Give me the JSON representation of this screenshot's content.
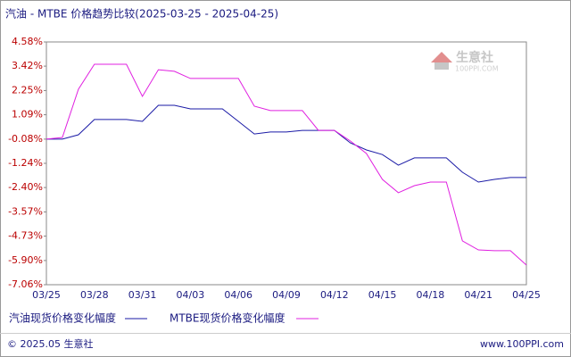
{
  "chart_data": {
    "type": "line",
    "title": "汽油 - MTBE 价格趋势比较(2025-03-25 - 2025-04-25)",
    "categories": [
      "03/25",
      null,
      null,
      "03/28",
      null,
      null,
      "03/31",
      null,
      null,
      "04/03",
      null,
      null,
      "04/06",
      null,
      null,
      "04/09",
      null,
      null,
      "04/12",
      null,
      null,
      "04/15",
      null,
      null,
      "04/18",
      null,
      null,
      "04/21",
      null,
      null,
      "04/25"
    ],
    "series": [
      {
        "name": "汽油现货价格变化幅度",
        "color": "#1a1aa6",
        "values": [
          -0.08,
          -0.08,
          0.13,
          0.86,
          0.86,
          0.86,
          0.77,
          1.54,
          1.54,
          1.37,
          1.37,
          1.37,
          0.77,
          0.17,
          0.26,
          0.26,
          0.34,
          0.34,
          0.34,
          -0.26,
          -0.6,
          -0.82,
          -1.33,
          -0.98,
          -0.98,
          -0.98,
          -1.67,
          -2.14,
          -2.01,
          -1.92,
          -1.92
        ]
      },
      {
        "name": "MTBE现货价格变化幅度",
        "color": "#e020e0",
        "values": [
          -0.08,
          0.0,
          2.31,
          3.51,
          3.51,
          3.51,
          1.97,
          3.25,
          3.17,
          2.83,
          2.83,
          2.83,
          2.83,
          1.5,
          1.29,
          1.29,
          1.29,
          0.34,
          0.34,
          -0.17,
          -0.77,
          -2.01,
          -2.65,
          -2.31,
          -2.14,
          -2.14,
          -4.96,
          -5.39,
          -5.43,
          -5.43,
          -6.12
        ]
      }
    ],
    "ylim": [
      -7.06,
      4.58
    ],
    "yticks": [
      {
        "value": 4.58,
        "label": "4.58%"
      },
      {
        "value": 3.42,
        "label": "3.42%"
      },
      {
        "value": 2.25,
        "label": "2.25%"
      },
      {
        "value": 1.09,
        "label": "1.09%"
      },
      {
        "value": -0.08,
        "label": "-0.08%"
      },
      {
        "value": -1.24,
        "label": "-1.24%"
      },
      {
        "value": -2.4,
        "label": "-2.40%"
      },
      {
        "value": -3.57,
        "label": "-3.57%"
      },
      {
        "value": -4.73,
        "label": "-4.73%"
      },
      {
        "value": -5.9,
        "label": "-5.90%"
      },
      {
        "value": -7.06,
        "label": "-7.06%"
      }
    ],
    "watermark": {
      "name": "生意社",
      "site": "100PPI.COM"
    },
    "footer": {
      "left": "© 2025.05 生意社",
      "right": "www.100PPI.com"
    }
  }
}
